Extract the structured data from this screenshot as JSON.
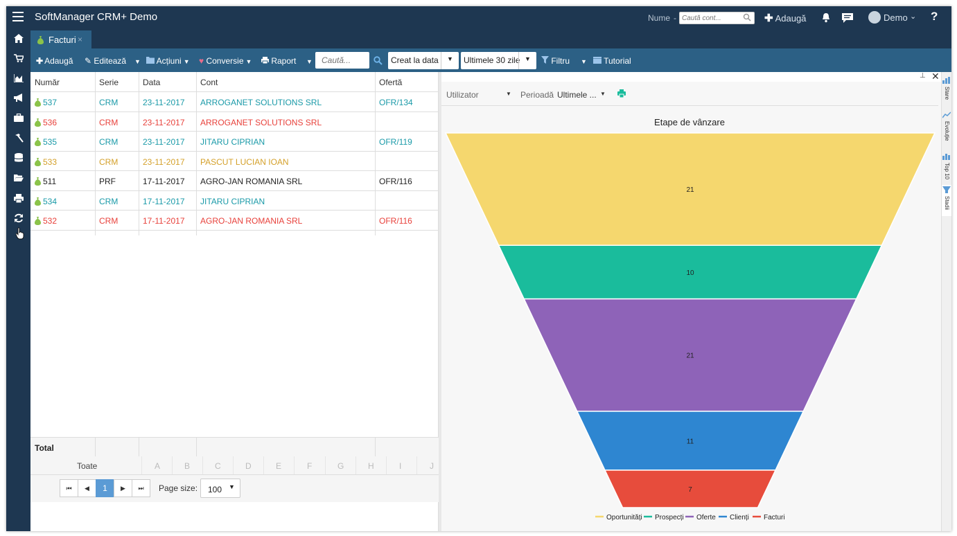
{
  "app": {
    "title": "SoftManager CRM+ Demo"
  },
  "topbar": {
    "name_label": "Nume",
    "name_dash": "-",
    "search_placeholder": "Caută cont...",
    "add_label": "Adaugă",
    "user_name": "Demo",
    "help": "?"
  },
  "sidebar": {
    "icons": [
      "home-icon",
      "cart-icon",
      "chart-area-icon",
      "bullhorn-icon",
      "briefcase-icon",
      "hammer-icon",
      "database-icon",
      "folder-open-icon",
      "print-icon",
      "refresh-icon"
    ]
  },
  "tab": {
    "label": "Facturi",
    "close": "×"
  },
  "toolbar": {
    "add": "Adaugă",
    "edit": "Editează",
    "actions": "Acțiuni",
    "convert": "Conversie",
    "report": "Raport",
    "search_placeholder": "Caută...",
    "date_field": "Creat la data",
    "period": "Ultimele 30 zile",
    "filter": "Filtru",
    "tutorial": "Tutorial"
  },
  "grid": {
    "columns": [
      "Număr",
      "Serie",
      "Data",
      "Cont",
      "Ofertă"
    ],
    "rows": [
      {
        "number": "537",
        "series": "CRM",
        "date": "23-11-2017",
        "account": "ARROGANET SOLUTIONS SRL",
        "offer": "OFR/134",
        "color": "#1a9aa8"
      },
      {
        "number": "536",
        "series": "CRM",
        "date": "23-11-2017",
        "account": "ARROGANET SOLUTIONS SRL",
        "offer": "",
        "color": "#e8413b"
      },
      {
        "number": "535",
        "series": "CRM",
        "date": "23-11-2017",
        "account": "JITARU CIPRIAN",
        "offer": "OFR/119",
        "color": "#1a9aa8"
      },
      {
        "number": "533",
        "series": "CRM",
        "date": "23-11-2017",
        "account": "PASCUT LUCIAN IOAN",
        "offer": "",
        "color": "#d4a02a"
      },
      {
        "number": "511",
        "series": "PRF",
        "date": "17-11-2017",
        "account": "AGRO-JAN ROMANIA SRL",
        "offer": "OFR/116",
        "color": "#222222"
      },
      {
        "number": "534",
        "series": "CRM",
        "date": "17-11-2017",
        "account": "JITARU CIPRIAN",
        "offer": "",
        "color": "#1a9aa8"
      },
      {
        "number": "532",
        "series": "CRM",
        "date": "17-11-2017",
        "account": "AGRO-JAN ROMANIA SRL",
        "offer": "OFR/116",
        "color": "#e8413b"
      }
    ],
    "total_label": "Total",
    "alpha": [
      "Toate",
      "A",
      "B",
      "C",
      "D",
      "E",
      "F",
      "G",
      "H",
      "I",
      "J"
    ],
    "pager": {
      "first": "⏮",
      "prev": "◀",
      "page": "1",
      "next": "▶",
      "last": "⏭",
      "page_size_label": "Page size:",
      "page_size": "100"
    }
  },
  "panel": {
    "user_filter": "Utilizator",
    "period_label": "Perioadă",
    "period_value": "Ultimele ...",
    "side_tabs": [
      "Stare",
      "Evoluție",
      "Top 10",
      "Stadii"
    ]
  },
  "chart_data": {
    "type": "funnel",
    "title": "Etape de vânzare",
    "stages": [
      {
        "name": "Oportunități",
        "value": 21,
        "color": "#f5d76e"
      },
      {
        "name": "Prospecți",
        "value": 10,
        "color": "#1abc9c"
      },
      {
        "name": "Oferte",
        "value": 21,
        "color": "#8e63b8"
      },
      {
        "name": "Clienți",
        "value": 11,
        "color": "#2e86d1"
      },
      {
        "name": "Facturi",
        "value": 7,
        "color": "#e74c3c"
      }
    ],
    "legend_position": "bottom"
  }
}
